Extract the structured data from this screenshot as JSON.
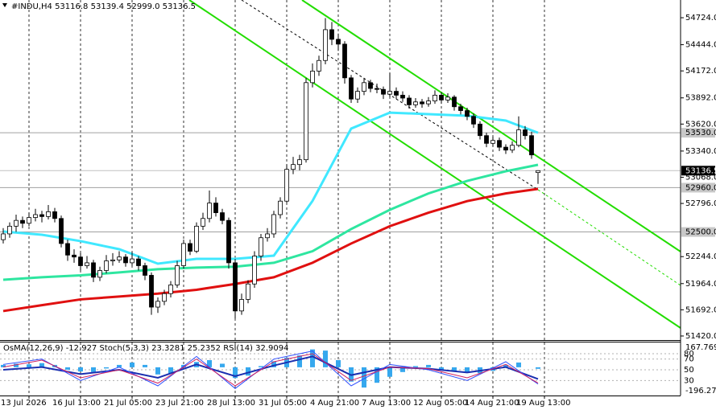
{
  "chart_data": {
    "type": "candlestick",
    "title": "#INDU,H4  53116.8 53139.4 52999.0 53136.5",
    "ohlc": [
      [
        52420,
        52540,
        52380,
        52480
      ],
      [
        52480,
        52600,
        52440,
        52560
      ],
      [
        52560,
        52680,
        52500,
        52620
      ],
      [
        52620,
        52660,
        52540,
        52590
      ],
      [
        52590,
        52700,
        52560,
        52650
      ],
      [
        52650,
        52740,
        52610,
        52680
      ],
      [
        52680,
        52720,
        52600,
        52660
      ],
      [
        52660,
        52780,
        52630,
        52710
      ],
      [
        52710,
        52750,
        52600,
        52640
      ],
      [
        52640,
        52670,
        52340,
        52380
      ],
      [
        52380,
        52420,
        52200,
        52260
      ],
      [
        52260,
        52320,
        52180,
        52240
      ],
      [
        52240,
        52280,
        52100,
        52150
      ],
      [
        52150,
        52250,
        52120,
        52180
      ],
      [
        52180,
        52210,
        51980,
        52030
      ],
      [
        52030,
        52140,
        51990,
        52100
      ],
      [
        52100,
        52260,
        52070,
        52200
      ],
      [
        52200,
        52280,
        52150,
        52210
      ],
      [
        52210,
        52300,
        52180,
        52240
      ],
      [
        52240,
        52270,
        52140,
        52180
      ],
      [
        52180,
        52290,
        52150,
        52220
      ],
      [
        52220,
        52250,
        52100,
        52150
      ],
      [
        52150,
        52180,
        52000,
        52050
      ],
      [
        52050,
        52080,
        51640,
        51720
      ],
      [
        51720,
        51820,
        51660,
        51780
      ],
      [
        51780,
        51900,
        51740,
        51860
      ],
      [
        51860,
        51990,
        51820,
        51950
      ],
      [
        51950,
        52200,
        51920,
        52150
      ],
      [
        52150,
        52420,
        52120,
        52380
      ],
      [
        52380,
        52420,
        52260,
        52300
      ],
      [
        52300,
        52600,
        52280,
        52560
      ],
      [
        52560,
        52700,
        52520,
        52640
      ],
      [
        52640,
        52930,
        52600,
        52800
      ],
      [
        52800,
        52860,
        52660,
        52700
      ],
      [
        52700,
        52740,
        52580,
        52620
      ],
      [
        52620,
        52650,
        52120,
        52180
      ],
      [
        52180,
        52220,
        51600,
        51680
      ],
      [
        51680,
        51860,
        51640,
        51800
      ],
      [
        51800,
        52000,
        51760,
        51960
      ],
      [
        51960,
        52300,
        51920,
        52250
      ],
      [
        52250,
        52480,
        52200,
        52440
      ],
      [
        52440,
        52540,
        52400,
        52480
      ],
      [
        52480,
        52720,
        52440,
        52680
      ],
      [
        52680,
        52860,
        52640,
        52820
      ],
      [
        52820,
        53200,
        52800,
        53150
      ],
      [
        53150,
        53280,
        53100,
        53200
      ],
      [
        53200,
        53300,
        53140,
        53250
      ],
      [
        53250,
        54100,
        53220,
        54050
      ],
      [
        54050,
        54250,
        54000,
        54170
      ],
      [
        54170,
        54330,
        54120,
        54280
      ],
      [
        54280,
        54720,
        54240,
        54600
      ],
      [
        54600,
        54680,
        54440,
        54500
      ],
      [
        54500,
        54560,
        54380,
        54450
      ],
      [
        54450,
        54480,
        54040,
        54100
      ],
      [
        54100,
        54130,
        53840,
        53880
      ],
      [
        53880,
        54000,
        53840,
        53960
      ],
      [
        53960,
        54100,
        53920,
        54050
      ],
      [
        54050,
        54080,
        53950,
        53990
      ],
      [
        53990,
        54040,
        53940,
        53980
      ],
      [
        53980,
        54010,
        53880,
        53930
      ],
      [
        53930,
        54150,
        53900,
        53960
      ],
      [
        53960,
        54000,
        53880,
        53920
      ],
      [
        53920,
        53960,
        53850,
        53890
      ],
      [
        53890,
        53920,
        53780,
        53820
      ],
      [
        53820,
        53890,
        53790,
        53850
      ],
      [
        53850,
        53880,
        53790,
        53830
      ],
      [
        53830,
        53900,
        53800,
        53860
      ],
      [
        53860,
        53970,
        53830,
        53920
      ],
      [
        53920,
        53950,
        53830,
        53870
      ],
      [
        53870,
        53940,
        53840,
        53900
      ],
      [
        53900,
        53920,
        53760,
        53800
      ],
      [
        53800,
        53830,
        53720,
        53760
      ],
      [
        53760,
        53790,
        53660,
        53700
      ],
      [
        53700,
        53730,
        53580,
        53620
      ],
      [
        53620,
        53650,
        53460,
        53500
      ],
      [
        53500,
        53530,
        53380,
        53420
      ],
      [
        53420,
        53490,
        53390,
        53450
      ],
      [
        53450,
        53480,
        53340,
        53380
      ],
      [
        53380,
        53410,
        53310,
        53350
      ],
      [
        53350,
        53440,
        53320,
        53400
      ],
      [
        53400,
        53700,
        53380,
        53560
      ],
      [
        53560,
        53600,
        53460,
        53500
      ],
      [
        53500,
        53540,
        53260,
        53300
      ],
      [
        53116.8,
        53139.4,
        52999.0,
        53136.5
      ]
    ],
    "xlim": [
      -0.5,
      105.125
    ],
    "xticks": [
      {
        "value": 4,
        "label": "13 Jul 2026"
      },
      {
        "value": 12,
        "label": "16 Jul 13:00"
      },
      {
        "value": 20,
        "label": "21 Jul 05:00"
      },
      {
        "value": 28,
        "label": "23 Jul 21:00"
      },
      {
        "value": 36,
        "label": "28 Jul 13:00"
      },
      {
        "value": 44,
        "label": "31 Jul 05:00"
      },
      {
        "value": 52,
        "label": "4 Aug 21:00"
      },
      {
        "value": 60,
        "label": "7 Aug 13:00"
      },
      {
        "value": 68,
        "label": "12 Aug 05:00"
      },
      {
        "value": 76,
        "label": "14 Aug 21:00"
      },
      {
        "value": 84,
        "label": "19 Aug 13:00"
      }
    ],
    "ylim": [
      51378,
      54908
    ],
    "yticks": [
      {
        "value": 54724,
        "label": "54724.0"
      },
      {
        "value": 54444,
        "label": "54444.0"
      },
      {
        "value": 54172,
        "label": "54172.0"
      },
      {
        "value": 53892,
        "label": "53892.0"
      },
      {
        "value": 53620,
        "label": "53620.0"
      },
      {
        "value": 53340,
        "label": "53340.0"
      },
      {
        "value": 53068,
        "label": "53068.0"
      },
      {
        "value": 52796,
        "label": "52796.0"
      },
      {
        "value": 52244,
        "label": "52244.0"
      },
      {
        "value": 51964,
        "label": "51964.0"
      },
      {
        "value": 51692,
        "label": "51692.0"
      },
      {
        "value": 51420,
        "label": "51420.0"
      }
    ],
    "grid": "vertical",
    "bull_color": "#ffffff",
    "bear_color": "#000000",
    "moving_averages": [
      {
        "color": "#40e8ff",
        "x": [
          0,
          6,
          12,
          18,
          24,
          30,
          36,
          42,
          48,
          54,
          60,
          66,
          72,
          78,
          83
        ],
        "values": [
          52505,
          52471,
          52405,
          52321,
          52171,
          52221,
          52221,
          52254,
          52822,
          53573,
          53739,
          53723,
          53706,
          53656,
          53530
        ]
      },
      {
        "color": "#2ee6a0",
        "x": [
          0,
          6,
          12,
          18,
          24,
          30,
          36,
          42,
          48,
          54,
          60,
          66,
          72,
          78,
          83
        ],
        "values": [
          52004,
          52030,
          52050,
          52080,
          52113,
          52130,
          52140,
          52180,
          52300,
          52530,
          52730,
          52900,
          53030,
          53130,
          53197
        ]
      },
      {
        "color": "#e01010",
        "x": [
          0,
          6,
          12,
          18,
          24,
          30,
          36,
          42,
          48,
          54,
          60,
          66,
          72,
          78,
          83
        ],
        "values": [
          51679,
          51740,
          51800,
          51830,
          51860,
          51900,
          51960,
          52030,
          52180,
          52380,
          52560,
          52700,
          52820,
          52900,
          52947
        ]
      }
    ],
    "levels": [
      {
        "value": 53530,
        "label": "53530.0"
      },
      {
        "value": 52960,
        "label": "52960.0"
      },
      {
        "value": 52500,
        "label": "52500.0"
      }
    ],
    "current_price": 53136.5,
    "indicator": {
      "title": "OsMA(12,26,9) -12.927  Stoch(5,3,3) 23.3281 25.2352  RSI(14) 32.9094",
      "osma_ylim": [
        -196.272,
        167.769
      ],
      "osma_ticks": [
        167.769,
        -196.272
      ],
      "osma_color": "#36a8ee",
      "osma_x": [
        0,
        2,
        4,
        6,
        8,
        10,
        12,
        14,
        16,
        18,
        20,
        22,
        24,
        26,
        28,
        30,
        32,
        34,
        36,
        38,
        40,
        42,
        44,
        46,
        48,
        50,
        52,
        54,
        56,
        58,
        60,
        62,
        64,
        66,
        68,
        70,
        72,
        74,
        76,
        78,
        80,
        83
      ],
      "osma": [
        20,
        30,
        25,
        35,
        20,
        -20,
        -35,
        -40,
        -10,
        20,
        40,
        20,
        -60,
        -50,
        20,
        45,
        60,
        30,
        -90,
        -70,
        10,
        50,
        80,
        100,
        150,
        140,
        60,
        -120,
        -170,
        -130,
        -80,
        -40,
        10,
        20,
        -20,
        -30,
        -40,
        -50,
        -30,
        20,
        40,
        -12.927
      ],
      "osc_ylim": [
        0,
        100
      ],
      "osc_ticks": [
        80,
        70,
        50,
        30
      ],
      "lines": [
        {
          "color": "#1a2fb0",
          "width": 2,
          "x": [
            0,
            6,
            12,
            18,
            24,
            30,
            36,
            42,
            48,
            54,
            60,
            66,
            72,
            78,
            83
          ],
          "values": [
            50,
            55,
            42,
            50,
            35,
            60,
            38,
            58,
            75,
            40,
            55,
            52,
            45,
            55,
            32.9094
          ]
        },
        {
          "color": "#3050ff",
          "width": 1,
          "x": [
            0,
            6,
            12,
            18,
            24,
            30,
            36,
            42,
            48,
            54,
            60,
            66,
            72,
            78,
            83
          ],
          "values": [
            60,
            70,
            30,
            55,
            20,
            75,
            15,
            70,
            85,
            20,
            60,
            50,
            30,
            65,
            23.3281
          ]
        },
        {
          "color": "#d02060",
          "width": 1,
          "x": [
            0,
            6,
            12,
            18,
            24,
            30,
            36,
            42,
            48,
            54,
            60,
            66,
            72,
            78,
            83
          ],
          "values": [
            55,
            68,
            35,
            50,
            25,
            70,
            20,
            65,
            80,
            30,
            55,
            52,
            35,
            60,
            25.2352
          ]
        }
      ]
    }
  }
}
